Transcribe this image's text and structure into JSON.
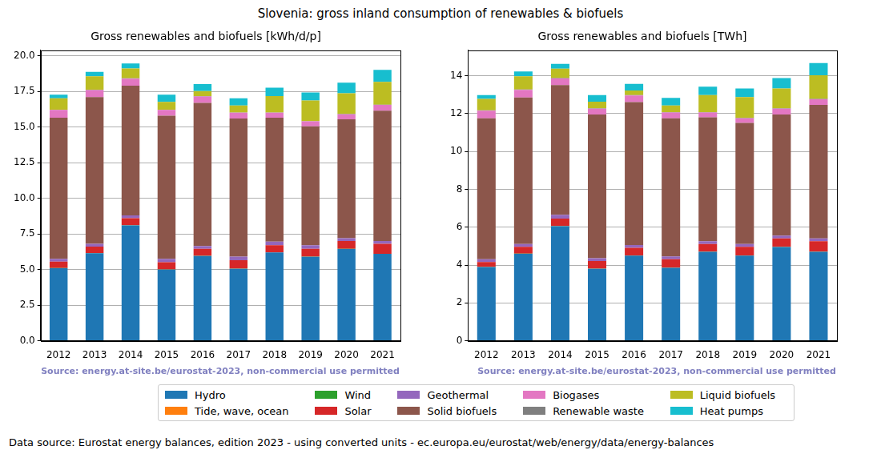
{
  "title": "Slovenia: gross inland consumption of renewables & biofuels",
  "footer": "Data source: Eurostat energy balances, edition 2023 - using converted units - ec.europa.eu/eurostat/web/energy/data/energy-balances",
  "chart_data": [
    {
      "type": "bar",
      "stacked": true,
      "grid": "y",
      "legend": "bottom",
      "title": "Gross renewables and biofuels [kWh/d/p]",
      "source": "Source: energy.at-site.be/eurostat-2023, non-commercial use permitted",
      "categories": [
        "2012",
        "2013",
        "2014",
        "2015",
        "2016",
        "2017",
        "2018",
        "2019",
        "2020",
        "2021"
      ],
      "ylim": [
        0,
        20.4
      ],
      "yticks": [
        {
          "value": 0,
          "label": "0.0"
        },
        {
          "value": 2.5,
          "label": "2.5"
        },
        {
          "value": 5,
          "label": "5.0"
        },
        {
          "value": 7.5,
          "label": "7.5"
        },
        {
          "value": 10,
          "label": "10.0"
        },
        {
          "value": 12.5,
          "label": "12.5"
        },
        {
          "value": 15,
          "label": "15.0"
        },
        {
          "value": 17.5,
          "label": "17.5"
        },
        {
          "value": 20,
          "label": "20.0"
        }
      ],
      "series": [
        {
          "name": "Hydro",
          "color": "#1f77b4",
          "values": [
            5.1,
            6.15,
            8.1,
            5.0,
            5.95,
            5.05,
            6.2,
            5.9,
            6.45,
            6.1
          ]
        },
        {
          "name": "Tide, wave, ocean",
          "color": "#ff7f0e",
          "values": [
            0,
            0,
            0,
            0,
            0,
            0,
            0,
            0,
            0,
            0
          ]
        },
        {
          "name": "Wind",
          "color": "#2ca02c",
          "values": [
            0.01,
            0.01,
            0.01,
            0.01,
            0.01,
            0.01,
            0.01,
            0.01,
            0.01,
            0.01
          ]
        },
        {
          "name": "Solar",
          "color": "#d62728",
          "values": [
            0.45,
            0.45,
            0.5,
            0.5,
            0.5,
            0.6,
            0.5,
            0.55,
            0.55,
            0.7
          ]
        },
        {
          "name": "Geothermal",
          "color": "#9467bd",
          "values": [
            0.2,
            0.2,
            0.2,
            0.25,
            0.2,
            0.25,
            0.25,
            0.25,
            0.2,
            0.2
          ]
        },
        {
          "name": "Solid biofuels",
          "color": "#8c564b",
          "values": [
            9.9,
            10.3,
            9.1,
            10.05,
            10.05,
            9.7,
            8.7,
            8.35,
            8.35,
            9.15
          ]
        },
        {
          "name": "Biogases",
          "color": "#e377c2",
          "values": [
            0.55,
            0.5,
            0.5,
            0.4,
            0.45,
            0.4,
            0.35,
            0.35,
            0.35,
            0.4
          ]
        },
        {
          "name": "Renewable waste",
          "color": "#7f7f7f",
          "values": [
            0.02,
            0.02,
            0.02,
            0.02,
            0.02,
            0.02,
            0.02,
            0.02,
            0.02,
            0.02
          ]
        },
        {
          "name": "Liquid biofuels",
          "color": "#bcbd22",
          "values": [
            0.8,
            0.95,
            0.7,
            0.55,
            0.35,
            0.5,
            1.15,
            1.45,
            1.45,
            1.6
          ]
        },
        {
          "name": "Heat pumps",
          "color": "#17becf",
          "values": [
            0.25,
            0.3,
            0.35,
            0.5,
            0.5,
            0.5,
            0.6,
            0.55,
            0.75,
            0.85
          ]
        }
      ]
    },
    {
      "type": "bar",
      "stacked": true,
      "grid": "y",
      "legend": "bottom",
      "title": "Gross renewables and biofuels [TWh]",
      "source": "Source: energy.at-site.be/eurostat-2023, non-commercial use permitted",
      "categories": [
        "2012",
        "2013",
        "2014",
        "2015",
        "2016",
        "2017",
        "2018",
        "2019",
        "2020",
        "2021"
      ],
      "ylim": [
        0,
        15.35
      ],
      "yticks": [
        0,
        2,
        4,
        6,
        8,
        10,
        12,
        14
      ],
      "series": [
        {
          "name": "Hydro",
          "color": "#1f77b4",
          "values": [
            3.9,
            4.6,
            6.05,
            3.8,
            4.5,
            3.85,
            4.7,
            4.5,
            4.95,
            4.7
          ]
        },
        {
          "name": "Tide, wave, ocean",
          "color": "#ff7f0e",
          "values": [
            0,
            0,
            0,
            0,
            0,
            0,
            0,
            0,
            0,
            0
          ]
        },
        {
          "name": "Wind",
          "color": "#2ca02c",
          "values": [
            0.01,
            0.01,
            0.01,
            0.01,
            0.01,
            0.01,
            0.01,
            0.01,
            0.01,
            0.01
          ]
        },
        {
          "name": "Solar",
          "color": "#d62728",
          "values": [
            0.25,
            0.35,
            0.4,
            0.4,
            0.4,
            0.45,
            0.4,
            0.45,
            0.45,
            0.55
          ]
        },
        {
          "name": "Geothermal",
          "color": "#9467bd",
          "values": [
            0.15,
            0.15,
            0.2,
            0.15,
            0.15,
            0.15,
            0.15,
            0.15,
            0.15,
            0.15
          ]
        },
        {
          "name": "Solid biofuels",
          "color": "#8c564b",
          "values": [
            7.45,
            7.75,
            6.85,
            7.6,
            7.55,
            7.3,
            6.55,
            6.4,
            6.4,
            7.05
          ]
        },
        {
          "name": "Biogases",
          "color": "#e377c2",
          "values": [
            0.4,
            0.4,
            0.35,
            0.3,
            0.35,
            0.3,
            0.25,
            0.25,
            0.3,
            0.3
          ]
        },
        {
          "name": "Renewable waste",
          "color": "#7f7f7f",
          "values": [
            0.02,
            0.02,
            0.02,
            0.02,
            0.02,
            0.02,
            0.02,
            0.02,
            0.02,
            0.02
          ]
        },
        {
          "name": "Liquid biofuels",
          "color": "#bcbd22",
          "values": [
            0.6,
            0.7,
            0.5,
            0.35,
            0.25,
            0.35,
            0.9,
            1.1,
            1.05,
            1.25
          ]
        },
        {
          "name": "Heat pumps",
          "color": "#17becf",
          "values": [
            0.2,
            0.25,
            0.25,
            0.35,
            0.35,
            0.4,
            0.45,
            0.45,
            0.55,
            0.65
          ]
        }
      ]
    }
  ]
}
